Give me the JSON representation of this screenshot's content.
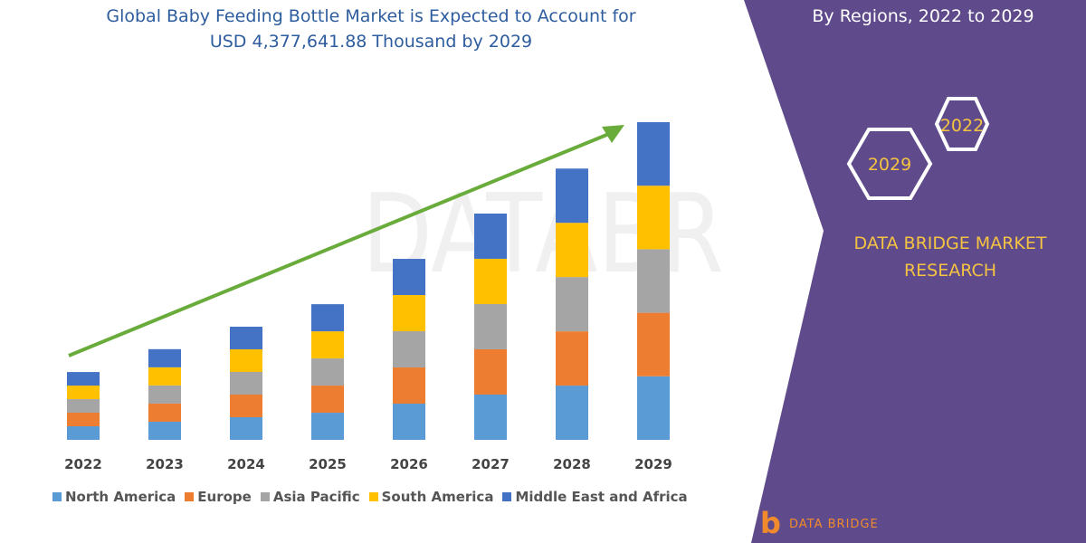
{
  "header": {
    "title_line1": "Global Baby Feeding Bottle Market is Expected to Account for",
    "title_line2": "USD 4,377,641.88 Thousand by 2029",
    "right_title": "By Regions, 2022 to 2029"
  },
  "badges": {
    "hex1": "2022",
    "hex2": "2029"
  },
  "brand": {
    "line1": "DATA BRIDGE MARKET",
    "line2": "RESEARCH",
    "logo_text": "DATA BRIDGE",
    "watermark": "DATABR"
  },
  "colors": {
    "panel": "#5f4b8b",
    "arrow": "#6aac3c",
    "accent": "#f5c342"
  },
  "chart_data": {
    "type": "bar",
    "stacked": true,
    "title": "Global Baby Feeding Bottle Market is Expected to Account for USD 4,377,641.88 Thousand by 2029",
    "categories": [
      "2022",
      "2023",
      "2024",
      "2025",
      "2026",
      "2027",
      "2028",
      "2029"
    ],
    "ylabel": "",
    "xlabel": "",
    "grid": false,
    "legend": "bottom",
    "unit": "USD Thousand (estimated)",
    "series": [
      {
        "name": "North America",
        "color": "#5b9bd5",
        "values": [
          187000,
          250000,
          312000,
          374000,
          499000,
          624000,
          748000,
          876000
        ]
      },
      {
        "name": "Europe",
        "color": "#ed7d31",
        "values": [
          187000,
          250000,
          312000,
          374000,
          499000,
          624000,
          748000,
          876000
        ]
      },
      {
        "name": "Asia Pacific",
        "color": "#a5a5a5",
        "values": [
          187000,
          250000,
          312000,
          374000,
          499000,
          624000,
          748000,
          876000
        ]
      },
      {
        "name": "South America",
        "color": "#ffc000",
        "values": [
          187000,
          250000,
          312000,
          374000,
          499000,
          624000,
          748000,
          876000
        ]
      },
      {
        "name": "Middle East and Africa",
        "color": "#4472c4",
        "values": [
          187000,
          250000,
          312000,
          374000,
          499000,
          624000,
          748000,
          875641.88
        ]
      }
    ]
  }
}
